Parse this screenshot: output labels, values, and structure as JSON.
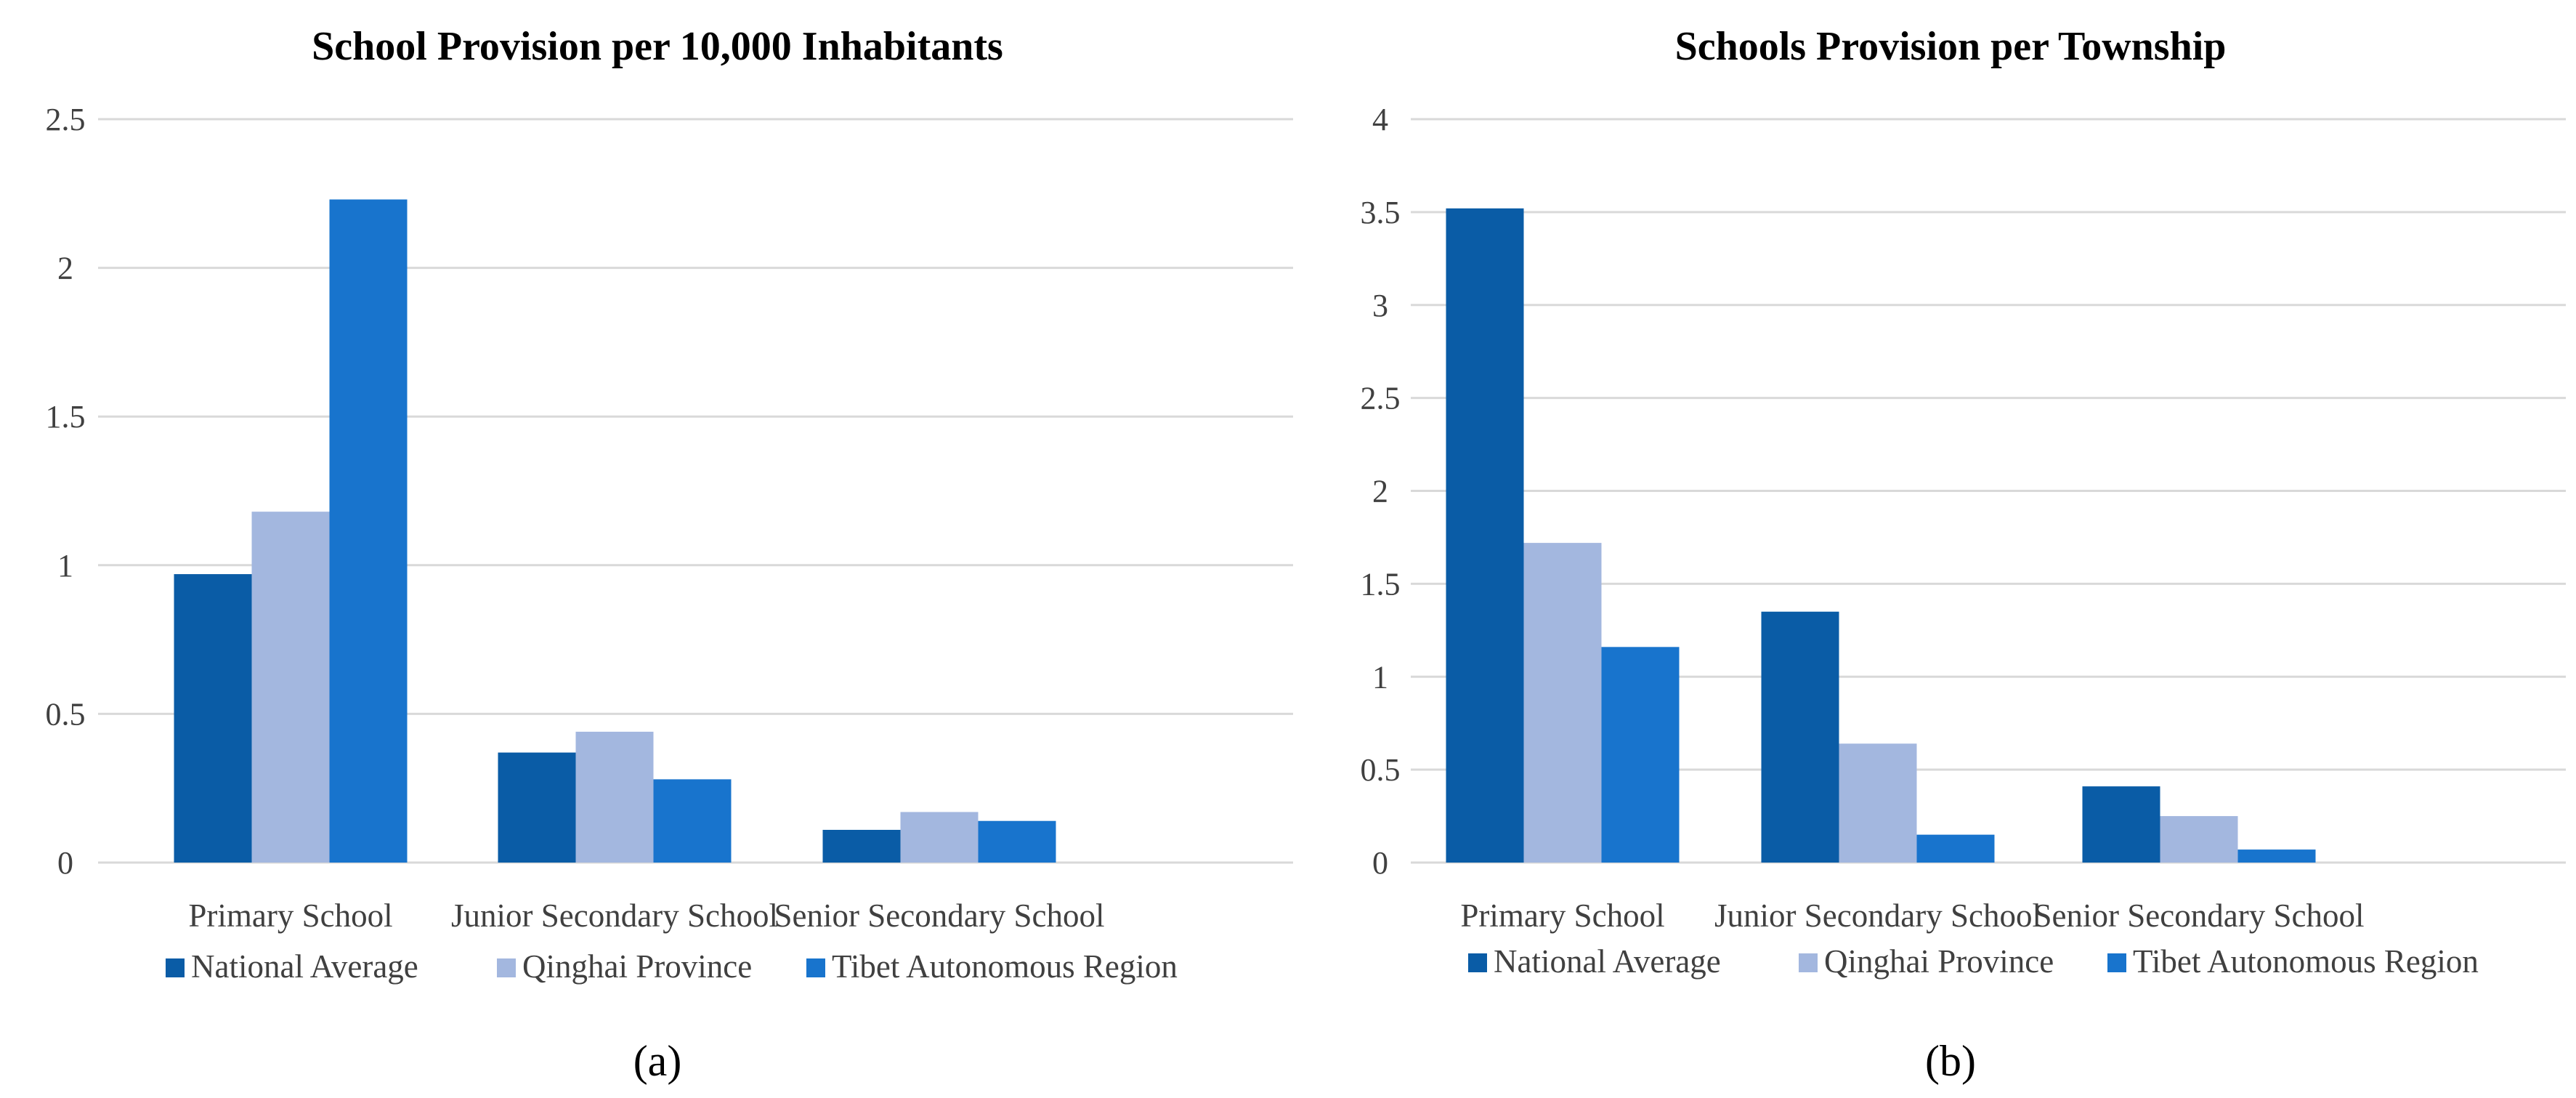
{
  "chart_data": [
    {
      "type": "bar",
      "title": "School Provision per 10,000 Inhabitants",
      "panel_label": "(a)",
      "categories": [
        "Primary School",
        "Junior Secondary School",
        "Senior Secondary School"
      ],
      "series": [
        {
          "name": "National Average",
          "color": "#0a5ca6",
          "values": [
            0.97,
            0.37,
            0.11
          ]
        },
        {
          "name": "Qinghai Province",
          "color": "#a3b7df",
          "values": [
            1.18,
            0.44,
            0.17
          ]
        },
        {
          "name": "Tibet Autonomous Region",
          "color": "#1874cd",
          "values": [
            2.23,
            0.28,
            0.14
          ]
        }
      ],
      "ylim": [
        0,
        2.5
      ],
      "yticks": [
        0,
        0.5,
        1,
        1.5,
        2,
        2.5
      ],
      "ytick_labels": [
        "0",
        "0.5",
        "1",
        "1.5",
        "2",
        "2.5"
      ],
      "xlabel": "",
      "ylabel": "",
      "grid": true,
      "legend": "bottom"
    },
    {
      "type": "bar",
      "title": "Schools Provision per Township",
      "panel_label": "(b)",
      "categories": [
        "Primary School",
        "Junior Secondary School",
        "Senior Secondary School"
      ],
      "series": [
        {
          "name": "National Average",
          "color": "#0a5ca6",
          "values": [
            3.52,
            1.35,
            0.41
          ]
        },
        {
          "name": "Qinghai Province",
          "color": "#a3b7df",
          "values": [
            1.72,
            0.64,
            0.25
          ]
        },
        {
          "name": "Tibet Autonomous Region",
          "color": "#1874cd",
          "values": [
            1.16,
            0.15,
            0.07
          ]
        }
      ],
      "ylim": [
        0,
        4
      ],
      "yticks": [
        0,
        0.5,
        1,
        1.5,
        2,
        2.5,
        3,
        3.5,
        4
      ],
      "ytick_labels": [
        "0",
        "0.5",
        "1",
        "1.5",
        "2",
        "2.5",
        "3",
        "3.5",
        "4"
      ],
      "xlabel": "",
      "ylabel": "",
      "grid": true,
      "legend": "bottom"
    }
  ]
}
